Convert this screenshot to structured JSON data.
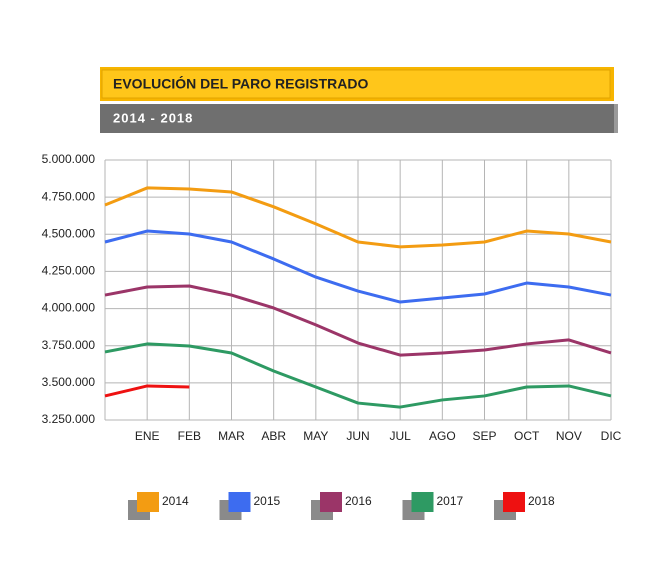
{
  "chart_data": {
    "type": "line",
    "title": "EVOLUCIÓN DEL PARO REGISTRADO",
    "subtitle": "2014 - 2018",
    "categories": [
      null,
      "ENE",
      "FEB",
      "MAR",
      "ABR",
      "MAY",
      "JUN",
      "JUL",
      "AGO",
      "SEP",
      "OCT",
      "NOV",
      "DIC"
    ],
    "series": [
      {
        "name": "2014",
        "color": "#f39c12",
        "values": [
          4697000,
          4812000,
          4805000,
          4785000,
          4685000,
          4570000,
          4448000,
          4415000,
          4428000,
          4448000,
          4522000,
          4502000,
          4448000
        ]
      },
      {
        "name": "2015",
        "color": "#3d6cf0",
        "values": [
          4448000,
          4522000,
          4502000,
          4448000,
          4334000,
          4212000,
          4118000,
          4044000,
          4071000,
          4098000,
          4172000,
          4145000,
          4091000
        ]
      },
      {
        "name": "2016",
        "color": "#9b3568",
        "values": [
          4091000,
          4145000,
          4152000,
          4091000,
          4004000,
          3890000,
          3768000,
          3687000,
          3701000,
          3721000,
          3762000,
          3789000,
          3701000
        ]
      },
      {
        "name": "2017",
        "color": "#2e9a63",
        "values": [
          3708000,
          3762000,
          3748000,
          3701000,
          3580000,
          3472000,
          3364000,
          3337000,
          3385000,
          3412000,
          3472000,
          3479000,
          3412000
        ]
      },
      {
        "name": "2018",
        "color": "#ee1111",
        "values": [
          3412000,
          3479000,
          3472000,
          null,
          null,
          null,
          null,
          null,
          null,
          null,
          null,
          null,
          null
        ]
      }
    ],
    "ylim": [
      3250000,
      5000000
    ],
    "yticks": [
      {
        "value": 3250000,
        "label": "3.250.000"
      },
      {
        "value": 3500000,
        "label": "3.500.000"
      },
      {
        "value": 3750000,
        "label": "3.750.000"
      },
      {
        "value": 4000000,
        "label": "4.000.000"
      },
      {
        "value": 4250000,
        "label": "4.250.000"
      },
      {
        "value": 4500000,
        "label": "4.500.000"
      },
      {
        "value": 4750000,
        "label": "4.750.000"
      },
      {
        "value": 5000000,
        "label": "5.000.000"
      }
    ],
    "grid": true
  }
}
